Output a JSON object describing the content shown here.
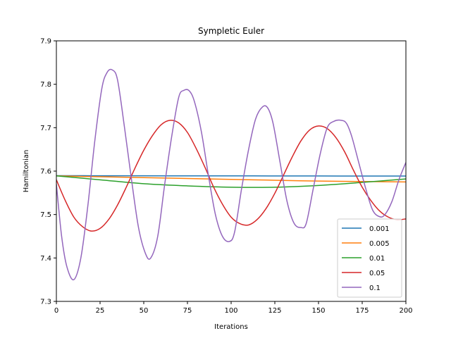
{
  "chart_data": {
    "type": "line",
    "title": "Sympletic Euler",
    "xlabel": "Iterations",
    "ylabel": "Hamiltonian",
    "xlim": [
      0,
      200
    ],
    "ylim": [
      7.3,
      7.9
    ],
    "xticks": [
      0,
      25,
      50,
      75,
      100,
      125,
      150,
      175,
      200
    ],
    "yticks": [
      7.3,
      7.4,
      7.5,
      7.6,
      7.7,
      7.8,
      7.9
    ],
    "grid": false,
    "legend_position": "lower-right",
    "series": [
      {
        "name": "0.001",
        "color": "#1f77b4",
        "x": [
          0,
          25,
          50,
          75,
          100,
          125,
          150,
          175,
          200
        ],
        "y": [
          7.5895,
          7.5893,
          7.5892,
          7.5891,
          7.589,
          7.5889,
          7.5888,
          7.5887,
          7.5886
        ]
      },
      {
        "name": "0.005",
        "color": "#ff7f0e",
        "x": [
          0,
          25,
          50,
          75,
          100,
          125,
          150,
          175,
          200
        ],
        "y": [
          7.589,
          7.587,
          7.585,
          7.583,
          7.581,
          7.579,
          7.577,
          7.576,
          7.575
        ]
      },
      {
        "name": "0.01",
        "color": "#2ca02c",
        "x": [
          0,
          25,
          50,
          75,
          100,
          125,
          150,
          175,
          200
        ],
        "y": [
          7.589,
          7.58,
          7.571,
          7.566,
          7.563,
          7.563,
          7.567,
          7.574,
          7.582
        ]
      },
      {
        "name": "0.05",
        "color": "#d62728",
        "x": [
          0,
          5,
          10,
          15,
          20,
          25,
          30,
          35,
          40,
          45,
          50,
          55,
          60,
          65,
          70,
          75,
          80,
          85,
          90,
          95,
          100,
          105,
          110,
          115,
          120,
          125,
          130,
          135,
          140,
          145,
          150,
          155,
          160,
          165,
          170,
          175,
          180,
          185,
          190,
          195,
          200
        ],
        "y": [
          7.58,
          7.533,
          7.494,
          7.472,
          7.462,
          7.468,
          7.489,
          7.522,
          7.563,
          7.607,
          7.648,
          7.682,
          7.707,
          7.717,
          7.711,
          7.689,
          7.652,
          7.609,
          7.563,
          7.524,
          7.494,
          7.479,
          7.476,
          7.489,
          7.514,
          7.549,
          7.591,
          7.633,
          7.67,
          7.695,
          7.704,
          7.698,
          7.677,
          7.644,
          7.602,
          7.563,
          7.532,
          7.508,
          7.494,
          7.488,
          7.49
        ]
      },
      {
        "name": "0.1",
        "color": "#9467bd",
        "x": [
          0,
          3,
          6,
          10,
          14,
          18,
          22,
          26,
          29,
          32,
          35,
          39,
          43,
          47,
          51,
          54,
          58,
          62,
          66,
          70,
          73,
          76,
          79,
          83,
          87,
          91,
          95,
          99,
          102,
          106,
          110,
          114,
          118,
          121,
          124,
          128,
          132,
          136,
          140,
          143,
          147,
          151,
          155,
          159,
          163,
          166,
          169,
          173,
          177,
          181,
          185,
          188,
          192,
          196,
          200
        ],
        "y": [
          7.57,
          7.45,
          7.38,
          7.35,
          7.4,
          7.52,
          7.67,
          7.79,
          7.827,
          7.833,
          7.81,
          7.7,
          7.58,
          7.47,
          7.41,
          7.4,
          7.45,
          7.57,
          7.68,
          7.77,
          7.786,
          7.785,
          7.76,
          7.69,
          7.59,
          7.5,
          7.45,
          7.438,
          7.46,
          7.56,
          7.65,
          7.72,
          7.748,
          7.745,
          7.71,
          7.62,
          7.53,
          7.48,
          7.47,
          7.48,
          7.56,
          7.64,
          7.7,
          7.715,
          7.717,
          7.71,
          7.68,
          7.62,
          7.56,
          7.51,
          7.495,
          7.5,
          7.53,
          7.58,
          7.62
        ]
      }
    ]
  }
}
